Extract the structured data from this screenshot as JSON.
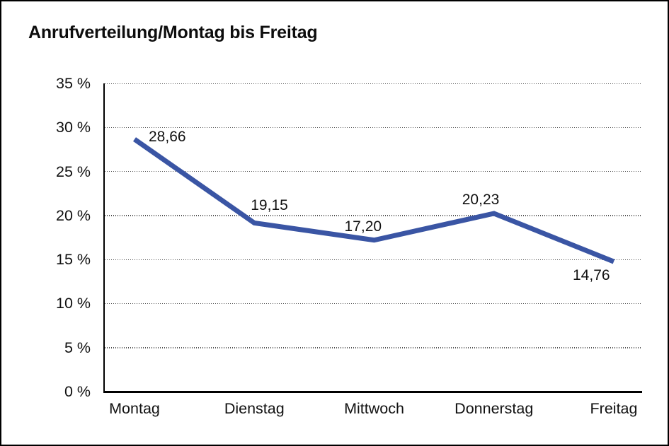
{
  "title": "Anrufverteilung/Montag bis Freitag",
  "chart_data": {
    "type": "line",
    "title": "Anrufverteilung/Montag bis Freitag",
    "categories": [
      "Montag",
      "Dienstag",
      "Mittwoch",
      "Donnerstag",
      "Freitag"
    ],
    "values": [
      28.66,
      19.15,
      17.2,
      20.23,
      14.76
    ],
    "value_labels": [
      "28,66",
      "19,15",
      "17,20",
      "20,23",
      "14,76"
    ],
    "xlabel": "",
    "ylabel": "",
    "ylim": [
      0,
      35
    ],
    "ytick_step": 5,
    "ytick_labels": [
      "35 %",
      "30 %",
      "25 %",
      "20 %",
      "15 %",
      "10 %",
      "5 %",
      "0 %"
    ],
    "grid": "horizontal-dotted",
    "legend_position": "none",
    "line_color": "#3A55A4",
    "axis_color": "#000000",
    "grid_color": "#4d4d4d",
    "text_color": "#111111",
    "background": "#ffffff"
  }
}
